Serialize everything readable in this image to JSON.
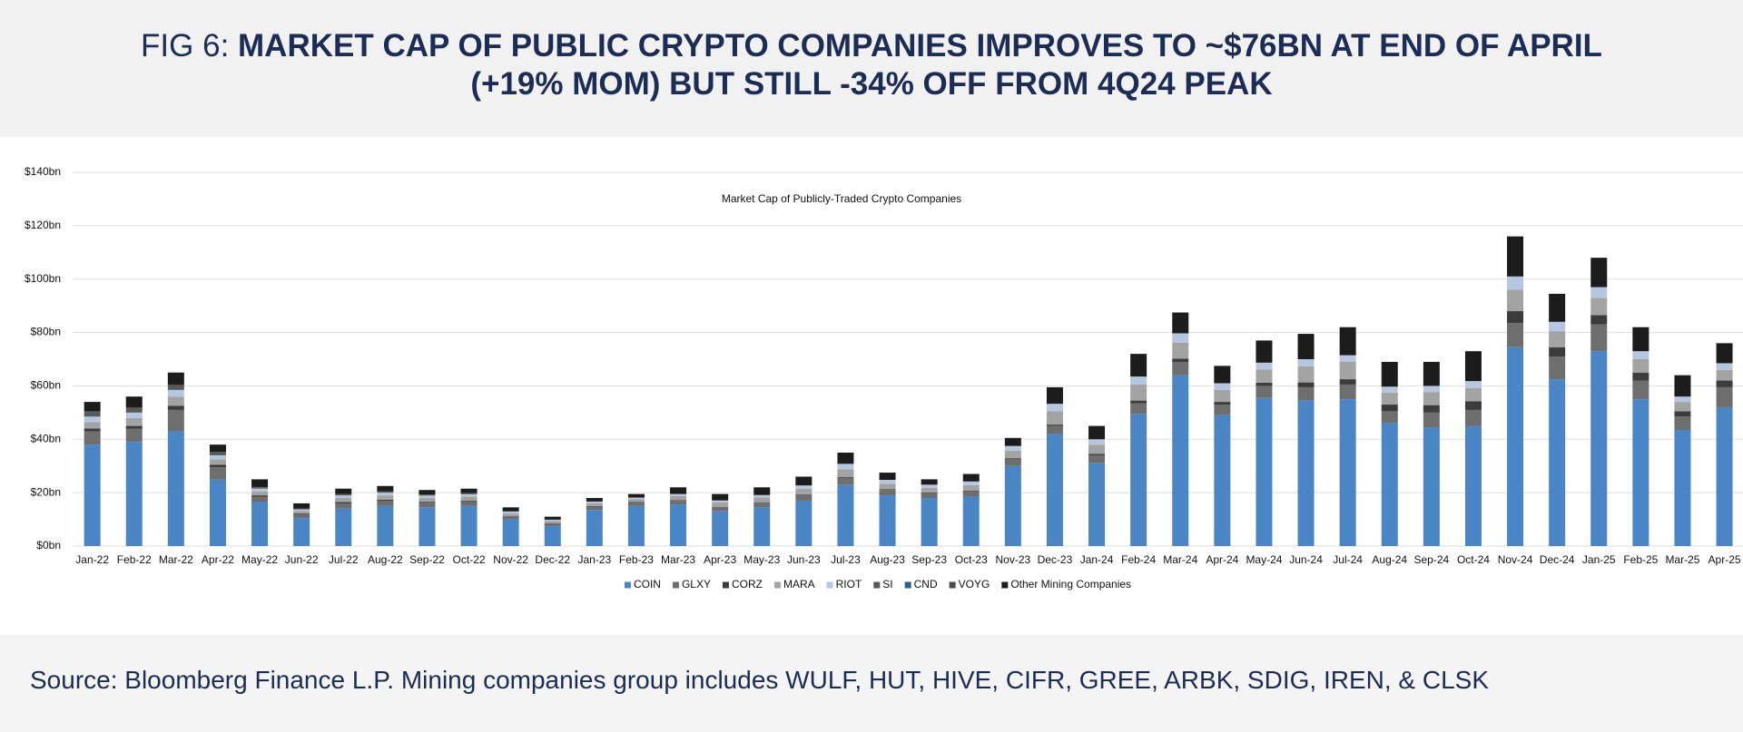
{
  "chart_data": {
    "type": "bar",
    "stacked": true,
    "title_prefix": "FIG 6:",
    "title": "MARKET CAP OF PUBLIC CRYPTO COMPANIES IMPROVES TO ~$76BN AT END OF APRIL (+19% MOM) BUT STILL -34% OFF FROM 4Q24 PEAK",
    "chart_title": "Market Cap of Publicly-Traded Crypto Companies",
    "source": "Source: Bloomberg Finance L.P. Mining companies group includes WULF, HUT, HIVE, CIFR, GREE, ARBK, SDIG, IREN, & CLSK",
    "categories": [
      "Jan-22",
      "Feb-22",
      "Mar-22",
      "Apr-22",
      "May-22",
      "Jun-22",
      "Jul-22",
      "Aug-22",
      "Sep-22",
      "Oct-22",
      "Nov-22",
      "Dec-22",
      "Jan-23",
      "Feb-23",
      "Mar-23",
      "Apr-23",
      "May-23",
      "Jun-23",
      "Jul-23",
      "Aug-23",
      "Sep-23",
      "Oct-23",
      "Nov-23",
      "Dec-23",
      "Jan-24",
      "Feb-24",
      "Mar-24",
      "Apr-24",
      "May-24",
      "Jun-24",
      "Jul-24",
      "Aug-24",
      "Sep-24",
      "Oct-24",
      "Nov-24",
      "Dec-24",
      "Jan-25",
      "Feb-25",
      "Mar-25",
      "Apr-25"
    ],
    "series": [
      {
        "name": "COIN",
        "color": "#4a86c6",
        "values": [
          38,
          39,
          43,
          25,
          16.5,
          10.5,
          14,
          15,
          14.5,
          15,
          10,
          7.5,
          13.5,
          15,
          15.5,
          13,
          14.5,
          17,
          23,
          19,
          18,
          18.5,
          30,
          42,
          31,
          49.5,
          64,
          49,
          55.5,
          54.5,
          55,
          46,
          44.5,
          45,
          74.5,
          62.5,
          73,
          55,
          43.5,
          52
        ]
      },
      {
        "name": "GLXY",
        "color": "#6e6e6e",
        "values": [
          5,
          5,
          8,
          4.5,
          2,
          1.5,
          2,
          2,
          1.8,
          1.8,
          1.2,
          1,
          1.3,
          1.3,
          1.5,
          1.5,
          1.7,
          2,
          2.5,
          2,
          1.7,
          2,
          2.5,
          3,
          3,
          4,
          5,
          4,
          4.5,
          5,
          5.5,
          4.5,
          5.5,
          6,
          9,
          8.5,
          10,
          7,
          5,
          7.5
        ]
      },
      {
        "name": "CORZ",
        "color": "#3c3c3c",
        "values": [
          1,
          1,
          1.5,
          1,
          0.5,
          0.3,
          0.5,
          0.4,
          0.3,
          0.2,
          0.1,
          0.1,
          0.2,
          0.2,
          0.2,
          0.2,
          0.2,
          0.3,
          0.3,
          0.3,
          0.3,
          0.3,
          0.4,
          0.5,
          0.5,
          1,
          1.2,
          1,
          1.2,
          1.8,
          2,
          2.5,
          2.8,
          3.2,
          4.5,
          3.5,
          3.5,
          3,
          2,
          2.5
        ]
      },
      {
        "name": "MARA",
        "color": "#a3a3a3",
        "values": [
          2.5,
          3,
          3.5,
          2,
          1.5,
          0.8,
          1.5,
          1.6,
          1.4,
          1.5,
          0.9,
          0.7,
          1,
          1,
          1.5,
          1.6,
          1.8,
          2.2,
          3,
          2,
          1.8,
          2,
          2.8,
          5,
          3.5,
          6,
          6,
          4.5,
          5,
          6,
          6.5,
          4.5,
          4.8,
          5,
          8,
          6,
          6.5,
          5,
          3.5,
          4
        ]
      },
      {
        "name": "RIOT",
        "color": "#b5c6e0",
        "values": [
          2,
          2,
          2.5,
          1.5,
          1,
          0.6,
          1,
          1,
          0.9,
          0.9,
          0.7,
          0.5,
          0.6,
          0.6,
          0.8,
          0.8,
          0.9,
          1.2,
          2,
          1.5,
          1.2,
          1.4,
          1.8,
          2.8,
          2,
          3,
          3.5,
          2.5,
          2.5,
          2.7,
          2.5,
          2.2,
          2.4,
          2.6,
          5,
          3.5,
          4,
          3,
          2,
          2.5
        ]
      },
      {
        "name": "SI",
        "color": "#595959",
        "values": [
          1.5,
          1.5,
          1.5,
          1,
          0.5,
          0.3,
          0.5,
          0.5,
          0.4,
          0.4,
          0.2,
          0.1,
          0.1,
          0.1,
          0,
          0,
          0,
          0,
          0,
          0,
          0,
          0,
          0,
          0,
          0,
          0,
          0,
          0,
          0,
          0,
          0,
          0,
          0,
          0,
          0,
          0,
          0,
          0,
          0,
          0
        ]
      },
      {
        "name": "CND",
        "color": "#2d5a8a",
        "values": [
          0,
          0,
          0,
          0,
          0,
          0,
          0,
          0,
          0,
          0,
          0,
          0,
          0,
          0,
          0,
          0,
          0,
          0,
          0,
          0,
          0,
          0,
          0,
          0,
          0,
          0,
          0,
          0,
          0,
          0,
          0,
          0,
          0,
          0,
          0,
          0,
          0,
          0,
          0,
          0
        ]
      },
      {
        "name": "VOYG",
        "color": "#4d4d4d",
        "values": [
          0.5,
          0.5,
          0.5,
          0.3,
          0.1,
          0,
          0,
          0,
          0,
          0,
          0,
          0,
          0,
          0,
          0,
          0,
          0,
          0,
          0,
          0,
          0,
          0,
          0,
          0,
          0,
          0,
          0,
          0,
          0,
          0,
          0,
          0,
          0,
          0,
          0,
          0,
          0,
          0,
          0,
          0
        ]
      },
      {
        "name": "Other Mining Companies",
        "color": "#1c1c1c",
        "values": [
          3.5,
          4,
          4.5,
          2.7,
          2.9,
          2,
          2,
          2,
          1.7,
          1.7,
          1.4,
          1.1,
          1.3,
          1.3,
          2.5,
          2.4,
          2.9,
          3.3,
          4.2,
          2.7,
          2,
          2.8,
          3,
          6.2,
          5,
          8.5,
          7.8,
          6.5,
          8.3,
          9.5,
          10.5,
          9.3,
          9,
          11.2,
          15,
          10.5,
          11,
          9,
          8,
          7.5
        ]
      }
    ],
    "ylim": [
      0,
      140
    ],
    "yticks": [
      {
        "value": 0,
        "label": "$0bn"
      },
      {
        "value": 20,
        "label": "$20bn"
      },
      {
        "value": 40,
        "label": "$40bn"
      },
      {
        "value": 60,
        "label": "$60bn"
      },
      {
        "value": 80,
        "label": "$80bn"
      },
      {
        "value": 100,
        "label": "$100bn"
      },
      {
        "value": 120,
        "label": "$120bn"
      },
      {
        "value": 140,
        "label": "$140bn"
      }
    ],
    "grid": true,
    "legend": "bottom"
  }
}
